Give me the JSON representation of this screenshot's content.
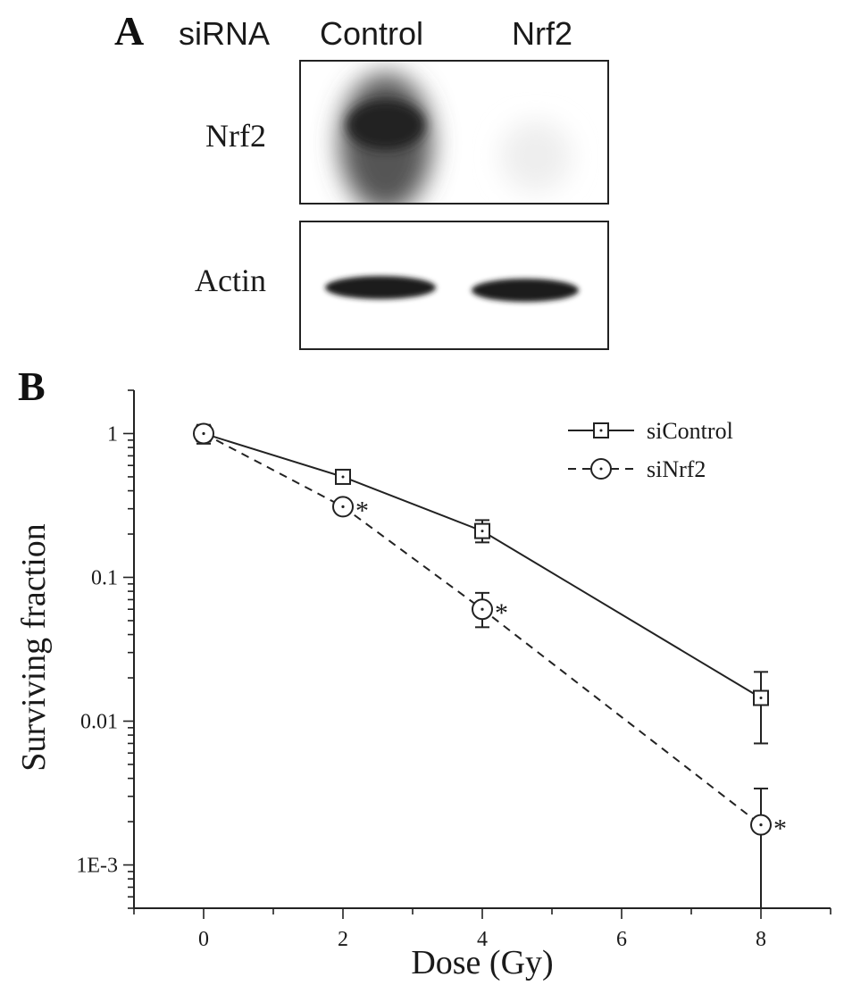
{
  "panel_a": {
    "letter": "A",
    "header": {
      "siRNA": "siRNA",
      "lane1": "Control",
      "lane2": "Nrf2"
    },
    "rows": [
      {
        "label": "Nrf2"
      },
      {
        "label": "Actin"
      }
    ]
  },
  "panel_b": {
    "letter": "B"
  },
  "chart_data": {
    "type": "line",
    "xlabel": "Dose (Gy)",
    "ylabel": "Surviving fraction",
    "x_ticks": [
      0,
      2,
      4,
      6,
      8
    ],
    "xlim": [
      -1,
      9
    ],
    "ylim": [
      0.0005,
      2
    ],
    "yscale": "log",
    "y_ticks": [
      1,
      0.1,
      0.01,
      0.001
    ],
    "y_tick_labels": [
      "1",
      "0.1",
      "0.01",
      "1E-3"
    ],
    "grid": false,
    "legend_position": "top-right",
    "significance_marker": "*",
    "series": [
      {
        "name": "siControl",
        "line_style": "solid",
        "marker": "square",
        "x": [
          0,
          2,
          4,
          8
        ],
        "y": [
          1.0,
          0.5,
          0.21,
          0.0145
        ],
        "err_low": [
          0.85,
          0.45,
          0.175,
          0.007
        ],
        "err_high": [
          1.15,
          0.56,
          0.25,
          0.022
        ],
        "significant": [
          false,
          false,
          false,
          false
        ]
      },
      {
        "name": "siNrf2",
        "line_style": "dashed",
        "marker": "circle",
        "x": [
          0,
          2,
          4,
          8
        ],
        "y": [
          1.0,
          0.31,
          0.06,
          0.0019
        ],
        "err_low": [
          0.88,
          0.29,
          0.045,
          0.0005
        ],
        "err_high": [
          1.1,
          0.33,
          0.078,
          0.0034
        ],
        "significant": [
          false,
          true,
          true,
          true
        ]
      }
    ]
  }
}
